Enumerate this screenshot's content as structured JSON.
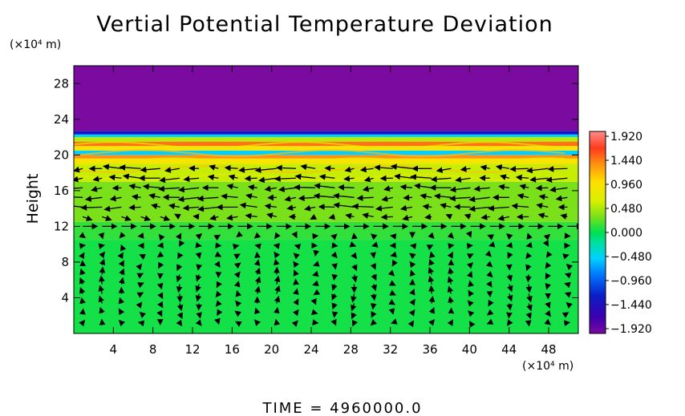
{
  "chart_data": {
    "type": "heatmap",
    "title": "Vertial Potential Temperature Deviation",
    "ylabel": "Height",
    "y_unit": "(×10⁴ m)",
    "x_unit": "(×10⁴ m)",
    "footer": "TIME  =  4960000.0",
    "xlim": [
      0,
      51
    ],
    "ylim": [
      0,
      30
    ],
    "x_ticks": [
      "4",
      "8",
      "12",
      "16",
      "20",
      "24",
      "28",
      "32",
      "36",
      "40",
      "44",
      "48"
    ],
    "y_ticks": [
      "4",
      "8",
      "12",
      "16",
      "20",
      "24",
      "28"
    ],
    "colorbar": {
      "range": [
        -1.92,
        1.92
      ],
      "ticks": [
        "1.920",
        "1.440",
        "0.960",
        "0.480",
        "0.000",
        "−0.480",
        "−0.960",
        "−1.440",
        "−1.920"
      ],
      "stops": [
        {
          "v": -1.92,
          "color": "#7a0aa0"
        },
        {
          "v": -1.6,
          "color": "#3a00b0"
        },
        {
          "v": -1.2,
          "color": "#0a1ec8"
        },
        {
          "v": -0.8,
          "color": "#0078ff"
        },
        {
          "v": -0.5,
          "color": "#00d0ff"
        },
        {
          "v": -0.2,
          "color": "#00e0a0"
        },
        {
          "v": 0.0,
          "color": "#00e050"
        },
        {
          "v": 0.3,
          "color": "#7ae01a"
        },
        {
          "v": 0.6,
          "color": "#d8f000"
        },
        {
          "v": 0.96,
          "color": "#ffe000"
        },
        {
          "v": 1.3,
          "color": "#ff9010"
        },
        {
          "v": 1.6,
          "color": "#ff3a1e"
        },
        {
          "v": 1.92,
          "color": "#ff8c8c"
        }
      ]
    },
    "field_bands": [
      {
        "y": [
          0,
          10.5
        ],
        "value": 0.05
      },
      {
        "y": [
          10.5,
          12.5
        ],
        "value": 0.12
      },
      {
        "y": [
          12.5,
          17
        ],
        "value": 0.3
      },
      {
        "y": [
          17,
          19
        ],
        "value": 0.55
      },
      {
        "y": [
          19,
          19.6
        ],
        "value": 0.9
      },
      {
        "y": [
          19.6,
          20.0
        ],
        "value": 1.3
      },
      {
        "y": [
          20.0,
          20.5
        ],
        "value": -0.5
      },
      {
        "y": [
          20.5,
          21.0
        ],
        "value": 0.9
      },
      {
        "y": [
          21.0,
          21.5
        ],
        "value": 1.4
      },
      {
        "y": [
          21.5,
          22.0
        ],
        "value": 0.5
      },
      {
        "y": [
          22.0,
          22.3
        ],
        "value": -0.5
      },
      {
        "y": [
          22.3,
          22.7
        ],
        "value": -1.3
      },
      {
        "y": [
          22.7,
          30
        ],
        "value": -1.92
      }
    ]
  }
}
